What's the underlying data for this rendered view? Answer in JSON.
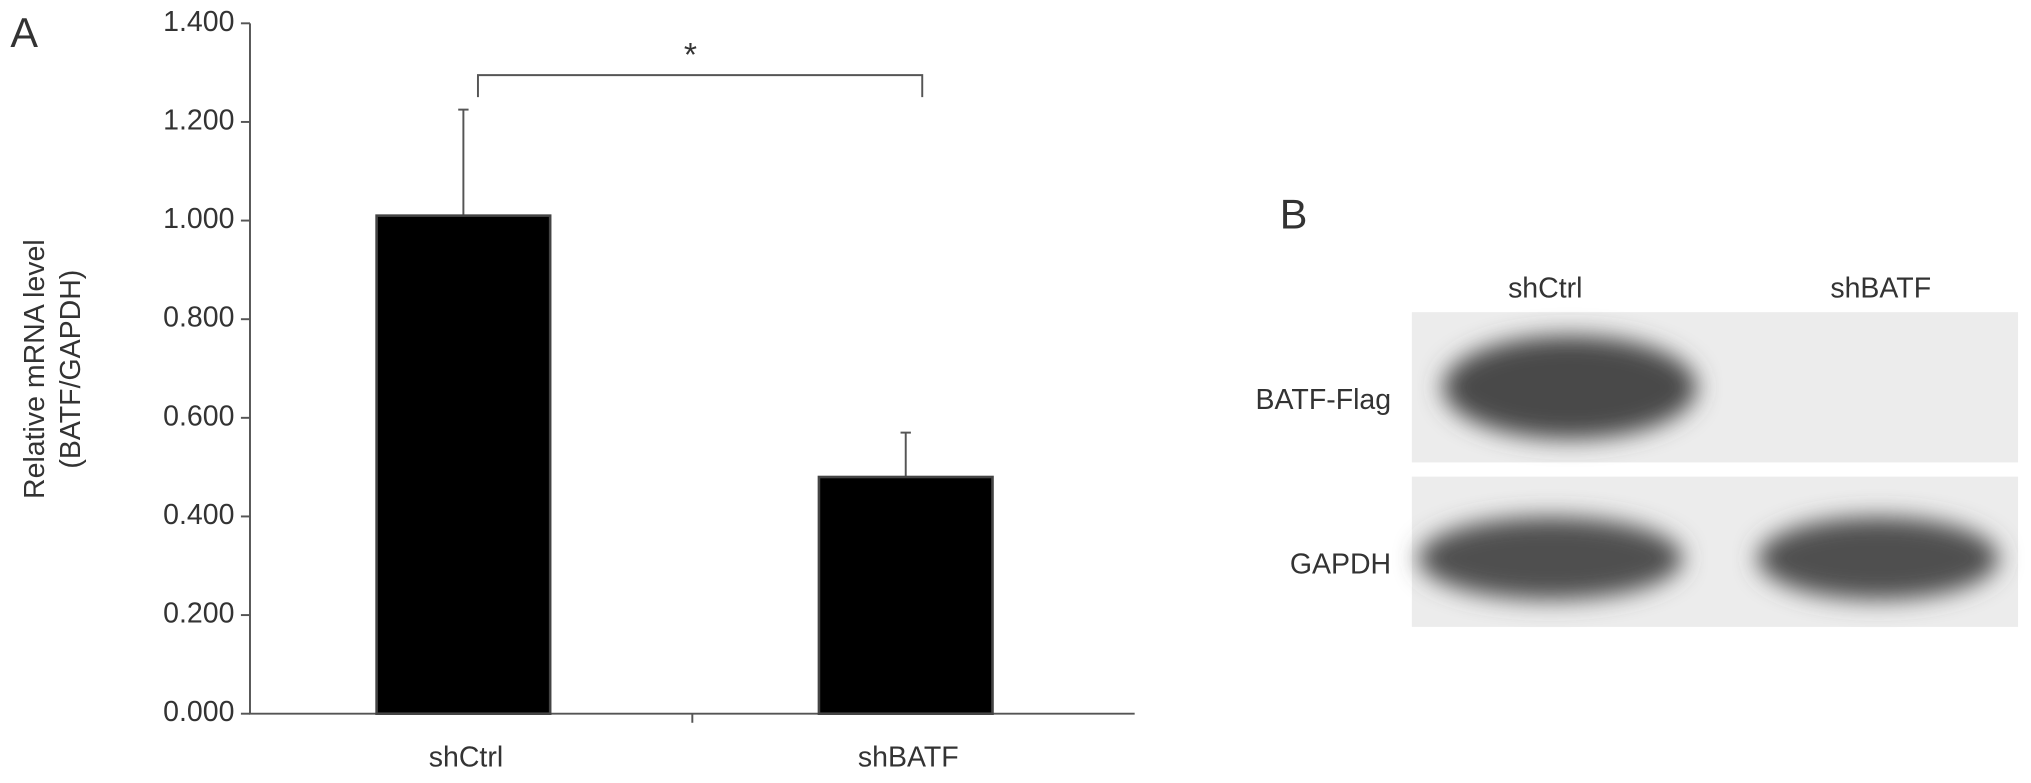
{
  "panel_labels": [
    "A",
    "B"
  ],
  "chart_data": {
    "type": "bar",
    "y_label": [
      "Relative mRNA level",
      "(BATF/GAPDH)"
    ],
    "categories": [
      "shCtrl",
      "shBATF"
    ],
    "values": [
      1.01,
      0.48
    ],
    "errors": [
      0.215,
      0.09
    ],
    "color": "#000000",
    "annotation": "*",
    "ylim": [
      0,
      1.4
    ],
    "yticks": [
      {
        "value": 0,
        "label": "0.000"
      },
      {
        "value": 0.2,
        "label": "0.200"
      },
      {
        "value": 0.4,
        "label": "0.400"
      },
      {
        "value": 0.6,
        "label": "0.600"
      },
      {
        "value": 0.8,
        "label": "0.800"
      },
      {
        "value": 1.0,
        "label": "1.000"
      },
      {
        "value": 1.2,
        "label": "1.200"
      },
      {
        "value": 1.4,
        "label": "1.400"
      }
    ]
  },
  "blot": {
    "lanes": [
      "shCtrl",
      "shBATF"
    ],
    "rows": [
      "BATF-Flag",
      "GAPDH"
    ]
  }
}
